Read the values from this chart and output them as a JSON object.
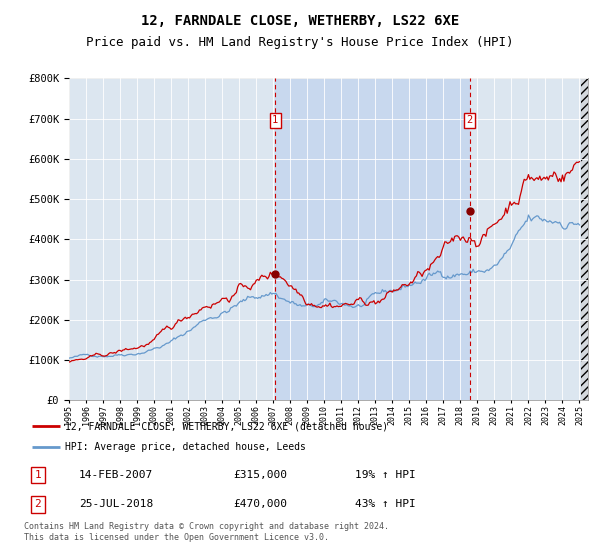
{
  "title": "12, FARNDALE CLOSE, WETHERBY, LS22 6XE",
  "subtitle": "Price paid vs. HM Land Registry's House Price Index (HPI)",
  "title_fontsize": 10,
  "subtitle_fontsize": 9,
  "plot_bg_color": "#dce6f0",
  "highlight_color": "#c8d8ee",
  "ylim": [
    0,
    800000
  ],
  "yticks": [
    0,
    100000,
    200000,
    300000,
    400000,
    500000,
    600000,
    700000,
    800000
  ],
  "xlim_start": 1995.5,
  "xlim_end": 2025.5,
  "red_line_color": "#cc0000",
  "blue_line_color": "#6699cc",
  "vline_color": "#cc0000",
  "sale1_year": 2007.12,
  "sale1_price": 315000,
  "sale1_label": "14-FEB-2007",
  "sale1_amount": "£315,000",
  "sale1_hpi": "19% ↑ HPI",
  "sale2_year": 2018.55,
  "sale2_price": 470000,
  "sale2_label": "25-JUL-2018",
  "sale2_amount": "£470,000",
  "sale2_hpi": "43% ↑ HPI",
  "legend_red_label": "12, FARNDALE CLOSE, WETHERBY, LS22 6XE (detached house)",
  "legend_blue_label": "HPI: Average price, detached house, Leeds",
  "footnote1": "Contains HM Land Registry data © Crown copyright and database right 2024.",
  "footnote2": "This data is licensed under the Open Government Licence v3.0."
}
